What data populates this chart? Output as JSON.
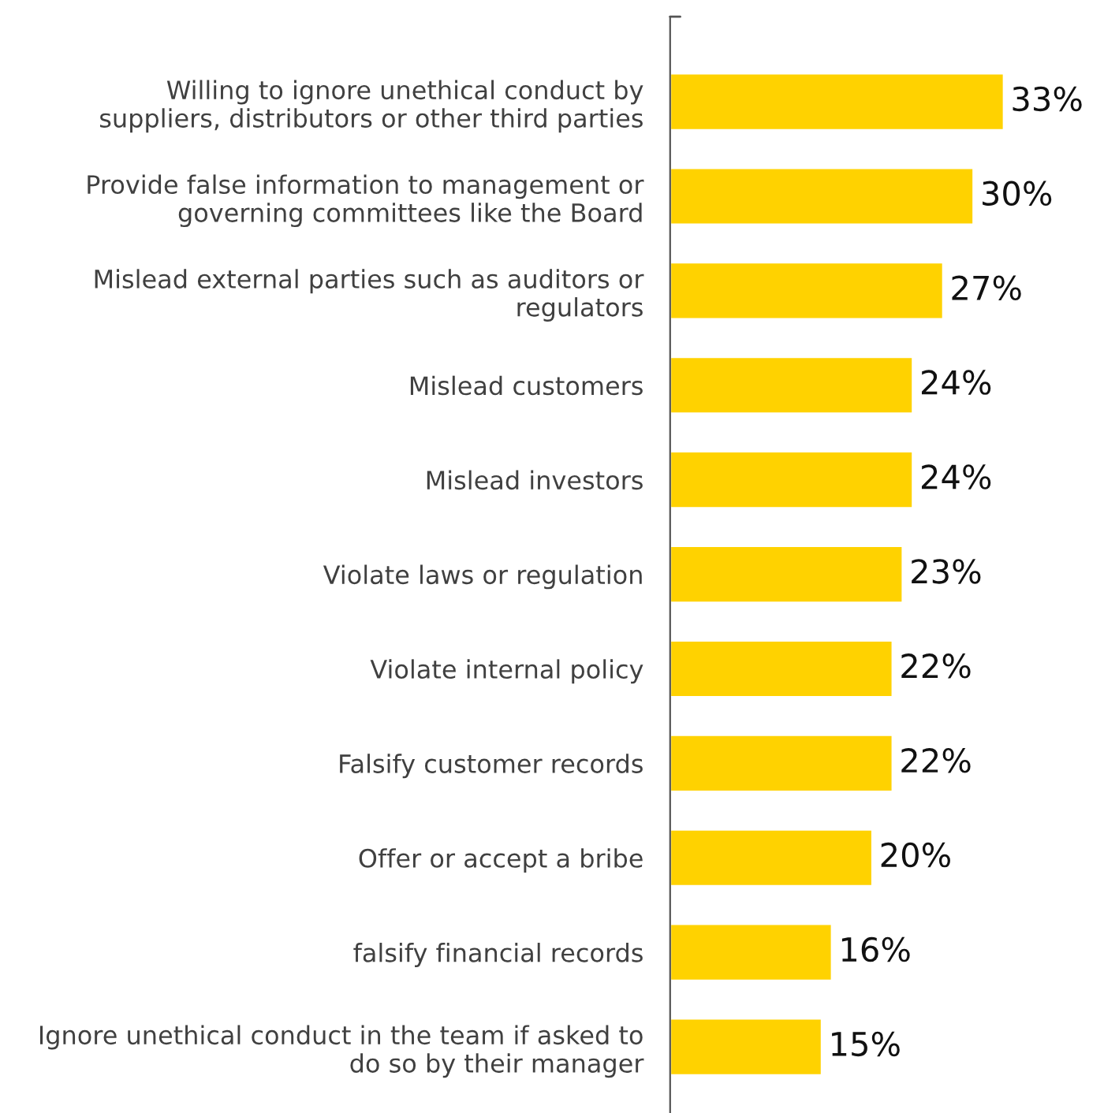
{
  "chart_data": {
    "type": "bar",
    "orientation": "horizontal",
    "categories": [
      "Willing to ignore unethical conduct by\nsuppliers, distributors or other third parties",
      "Provide false information to management or\ngoverning committees like the Board",
      "Mislead external parties such as auditors or\nregulators",
      "Mislead customers",
      "Mislead investors",
      "Violate laws or regulation",
      "Violate internal policy",
      "Falsify customer records",
      "Offer or accept a bribe",
      "falsify financial records",
      "Ignore unethical conduct in the team if asked to\ndo so by their manager"
    ],
    "values": [
      33,
      30,
      27,
      24,
      24,
      23,
      22,
      22,
      20,
      16,
      15
    ],
    "value_labels": [
      "33%",
      "30%",
      "27%",
      "24%",
      "24%",
      "23%",
      "22%",
      "22%",
      "20%",
      "16%",
      "15%"
    ],
    "color": "#ffd200",
    "grid": false,
    "legend": false
  }
}
